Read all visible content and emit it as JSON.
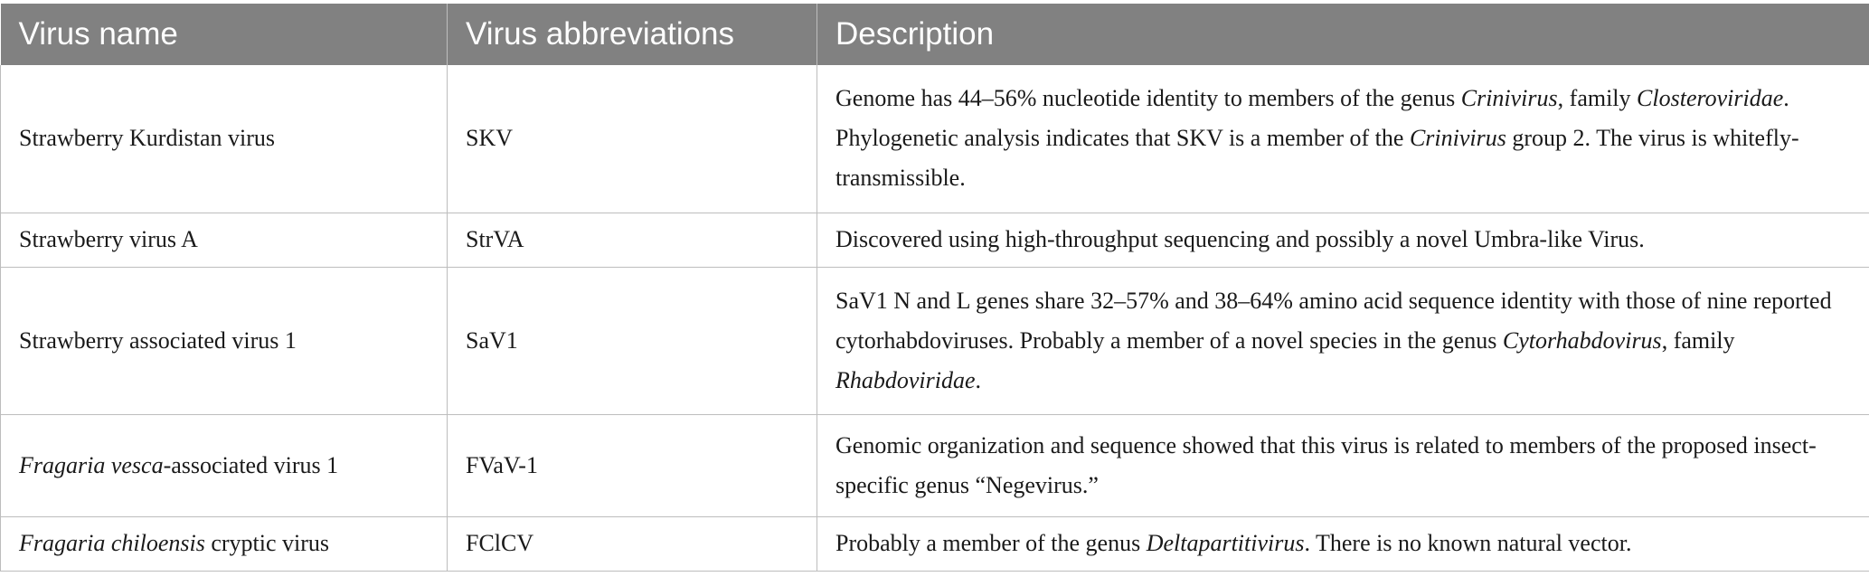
{
  "table": {
    "headers": [
      "Virus name",
      "Virus abbreviations",
      "Description"
    ],
    "rows": [
      {
        "name": [
          {
            "t": "Strawberry Kurdistan virus"
          }
        ],
        "abbr": "SKV",
        "desc": [
          {
            "t": "Genome has 44–56% nucleotide identity to members of the genus "
          },
          {
            "t": "Crinivirus",
            "i": true
          },
          {
            "t": ", family "
          },
          {
            "t": "Closteroviridae",
            "i": true
          },
          {
            "t": ". Phylogenetic analysis indicates that SKV is a member of the "
          },
          {
            "t": "Crinivirus",
            "i": true
          },
          {
            "t": " group 2. The virus is whitefly-transmissible."
          }
        ]
      },
      {
        "name": [
          {
            "t": "Strawberry virus A"
          }
        ],
        "abbr": "StrVA",
        "desc": [
          {
            "t": "Discovered using high-throughput sequencing and possibly a novel Umbra-like Virus."
          }
        ]
      },
      {
        "name": [
          {
            "t": "Strawberry associated virus 1"
          }
        ],
        "abbr": "SaV1",
        "desc": [
          {
            "t": "SaV1 N and L genes share 32–57% and 38–64% amino acid sequence identity with those of nine reported cytorhabdoviruses. Probably a member of a novel species in the genus "
          },
          {
            "t": "Cytorhabdovirus",
            "i": true
          },
          {
            "t": ", family "
          },
          {
            "t": "Rhabdoviridae",
            "i": true
          },
          {
            "t": "."
          }
        ]
      },
      {
        "name": [
          {
            "t": "Fragaria vesca",
            "i": true
          },
          {
            "t": "-associated virus 1"
          }
        ],
        "abbr": "FVaV-1",
        "desc": [
          {
            "t": "Genomic organization and sequence showed that this virus is related to members of the proposed insect-specific genus “Negevirus.”"
          }
        ]
      },
      {
        "name": [
          {
            "t": "Fragaria chiloensis",
            "i": true
          },
          {
            "t": " cryptic virus"
          }
        ],
        "abbr": "FClCV",
        "desc": [
          {
            "t": "Probably a member of the genus "
          },
          {
            "t": "Deltapartitivirus",
            "i": true
          },
          {
            "t": ". There is no known natural vector."
          }
        ]
      }
    ]
  }
}
